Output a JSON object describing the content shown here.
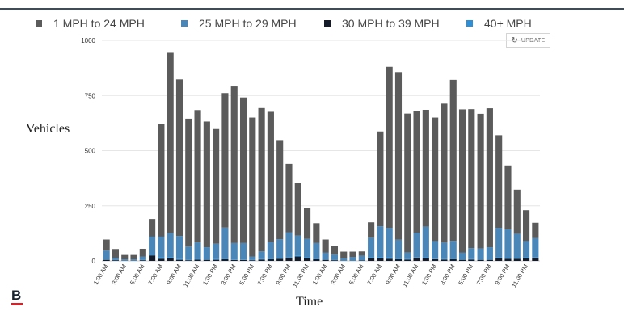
{
  "legend": [
    {
      "label": "1 MPH to 24 MPH",
      "color": "#5b5b5b"
    },
    {
      "label": "25 MPH to 29 MPH",
      "color": "#4a86b8"
    },
    {
      "label": "30 MPH to 39 MPH",
      "color": "#141c2b"
    },
    {
      "label": "40+ MPH",
      "color": "#2f8fd6"
    }
  ],
  "update_button": {
    "label": "UPDATE",
    "icon": "refresh-icon"
  },
  "brand": {
    "letter": "B",
    "accent": "#d2232a"
  },
  "chart_data": {
    "type": "bar",
    "stacked": true,
    "xlabel": "Time",
    "ylabel": "Vehicles",
    "ylim": [
      0,
      1000
    ],
    "yticks": [
      0,
      250,
      500,
      750,
      1000
    ],
    "grid": true,
    "legend_position": "top",
    "x_tick_labels": [
      "1:00 AM",
      "3:00 AM",
      "5:00 AM",
      "7:00 AM",
      "9:00 AM",
      "11:00 AM",
      "1:00 PM",
      "3:00 PM",
      "5:00 PM",
      "7:00 PM",
      "9:00 PM",
      "11:00 PM",
      "1:00 AM",
      "3:00 AM",
      "5:00 AM",
      "7:00 AM",
      "9:00 AM",
      "11:00 AM",
      "1:00 PM",
      "3:00 PM",
      "5:00 PM",
      "7:00 PM",
      "9:00 PM",
      "11:00 PM"
    ],
    "series": [
      {
        "name": "1 MPH to 24 MPH",
        "color": "#5b5b5b",
        "values": [
          50,
          40,
          20,
          20,
          35,
          80,
          510,
          820,
          710,
          580,
          600,
          570,
          520,
          610,
          710,
          660,
          630,
          650,
          590,
          450,
          310,
          240,
          140,
          90,
          60,
          40,
          30,
          25,
          20,
          70,
          430,
          730,
          760,
          630,
          550,
          530,
          560,
          630,
          730,
          650,
          630,
          610,
          630,
          420,
          290,
          200,
          140,
          70
        ]
      },
      {
        "name": "25 MPH to 29 MPH",
        "color": "#4a86b8",
        "values": [
          40,
          10,
          5,
          5,
          15,
          80,
          95,
          110,
          105,
          60,
          75,
          55,
          70,
          140,
          75,
          75,
          15,
          35,
          75,
          85,
          110,
          90,
          85,
          70,
          30,
          25,
          10,
          15,
          20,
          90,
          140,
          135,
          85,
          30,
          110,
          140,
          80,
          75,
          80,
          30,
          50,
          50,
          55,
          135,
          130,
          110,
          75,
          85
        ]
      },
      {
        "name": "30 MPH to 39 MPH",
        "color": "#141c2b",
        "values": [
          5,
          3,
          1,
          1,
          3,
          25,
          10,
          12,
          5,
          3,
          6,
          5,
          5,
          8,
          4,
          4,
          3,
          6,
          8,
          10,
          15,
          20,
          12,
          8,
          5,
          3,
          1,
          1,
          2,
          12,
          12,
          10,
          8,
          6,
          15,
          12,
          8,
          6,
          8,
          5,
          6,
          5,
          5,
          12,
          10,
          10,
          12,
          15
        ]
      },
      {
        "name": "40+ MPH",
        "color": "#2f8fd6",
        "values": [
          2,
          1,
          1,
          1,
          2,
          5,
          5,
          5,
          3,
          2,
          3,
          2,
          3,
          3,
          2,
          2,
          2,
          2,
          3,
          3,
          5,
          5,
          3,
          3,
          2,
          1,
          1,
          1,
          1,
          3,
          5,
          5,
          3,
          2,
          3,
          3,
          2,
          2,
          3,
          2,
          2,
          2,
          2,
          3,
          3,
          3,
          3,
          3
        ]
      }
    ]
  }
}
